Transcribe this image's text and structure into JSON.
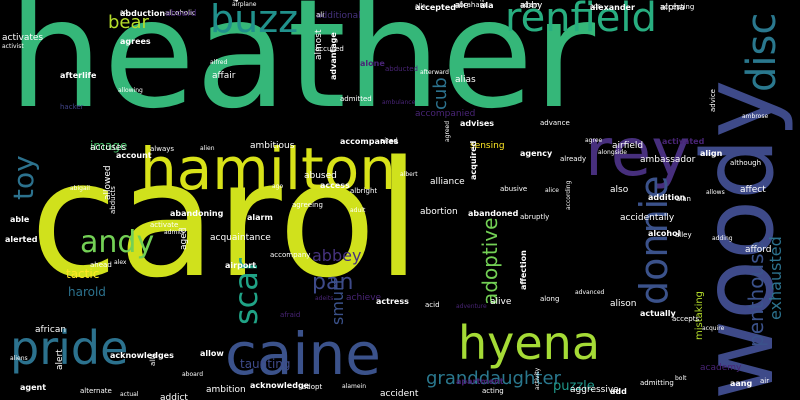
{
  "words": [
    {
      "text": "heather",
      "color": "#35b779"
    },
    {
      "text": "carol",
      "color": "#d0e11c"
    },
    {
      "text": "woody",
      "color": "#3e4a89"
    },
    {
      "text": "caine",
      "color": "#3b528b"
    },
    {
      "text": "hamilton",
      "color": "#d8e219"
    },
    {
      "text": "pride",
      "color": "#2c728e"
    },
    {
      "text": "rey",
      "color": "#472f7d"
    },
    {
      "text": "renfield",
      "color": "#28ae80"
    },
    {
      "text": "disc",
      "color": "#2a788e"
    },
    {
      "text": "donnie",
      "color": "#3b528b"
    },
    {
      "text": "hyena",
      "color": "#a5db36"
    },
    {
      "text": "buzz",
      "color": "#21918c"
    },
    {
      "text": "toy",
      "color": "#2c728e"
    },
    {
      "text": "scar",
      "color": "#20a386"
    },
    {
      "text": "andy",
      "color": "#73d055"
    },
    {
      "text": "penthouse",
      "color": "#3b528b"
    },
    {
      "text": "exhausted",
      "color": "#2c728e"
    },
    {
      "text": "pan",
      "color": "#3e4a89"
    },
    {
      "text": "abbey",
      "color": "#46327e"
    },
    {
      "text": "adoptive",
      "color": "#73d055"
    },
    {
      "text": "granddaughter",
      "color": "#2a788e"
    },
    {
      "text": "bear",
      "color": "#b5de2b"
    },
    {
      "text": "cub",
      "color": "#2c728e"
    },
    {
      "text": "smurf",
      "color": "#3b528b"
    },
    {
      "text": "image",
      "color": "#4ac16d"
    },
    {
      "text": "harold",
      "color": "#2c728e"
    },
    {
      "text": "tactic",
      "color": "#fde725"
    },
    {
      "text": "puzzle",
      "color": "#1f988b"
    },
    {
      "text": "taunting",
      "color": "#3e4a89"
    },
    {
      "text": "mistaking",
      "color": "#b5de2b"
    },
    {
      "text": "abduction",
      "color": "#ffffff"
    },
    {
      "text": "alcoholic",
      "color": "#ffffff"
    },
    {
      "text": "airplane",
      "color": "#ffffff"
    },
    {
      "text": "additional",
      "color": "#46327e"
    },
    {
      "text": "accepted",
      "color": "#ffffff"
    },
    {
      "text": "abraham",
      "color": "#ffffff"
    },
    {
      "text": "actor",
      "color": "#ffffff"
    },
    {
      "text": "abby",
      "color": "#ffffff"
    },
    {
      "text": "alexander",
      "color": "#ffffff"
    },
    {
      "text": "accepting",
      "color": "#ffffff"
    },
    {
      "text": "activist",
      "color": "#ffffff"
    },
    {
      "text": "activates",
      "color": "#ffffff"
    },
    {
      "text": "agrees",
      "color": "#ffffff"
    },
    {
      "text": "accused",
      "color": "#ffffff"
    },
    {
      "text": "alfred",
      "color": "#ffffff"
    },
    {
      "text": "almost",
      "color": "#ffffff"
    },
    {
      "text": "alone",
      "color": "#482475"
    },
    {
      "text": "abducted",
      "color": "#482475"
    },
    {
      "text": "afterward",
      "color": "#ffffff"
    },
    {
      "text": "alias",
      "color": "#ffffff"
    },
    {
      "text": "afterlife",
      "color": "#ffffff"
    },
    {
      "text": "hacker",
      "color": "#414487"
    },
    {
      "text": "allowing",
      "color": "#ffffff"
    },
    {
      "text": "affair",
      "color": "#ffffff"
    },
    {
      "text": "advantage",
      "color": "#ffffff"
    },
    {
      "text": "admitted",
      "color": "#ffffff"
    },
    {
      "text": "ambulance",
      "color": "#482475"
    },
    {
      "text": "accompanied",
      "color": "#482475"
    },
    {
      "text": "advises",
      "color": "#ffffff"
    },
    {
      "text": "advance",
      "color": "#ffffff"
    },
    {
      "text": "agree",
      "color": "#ffffff"
    },
    {
      "text": "airfield",
      "color": "#ffffff"
    },
    {
      "text": "activated",
      "color": "#482475"
    },
    {
      "text": "advice",
      "color": "#ffffff"
    },
    {
      "text": "ambrose",
      "color": "#ffffff"
    },
    {
      "text": "accuses",
      "color": "#ffffff"
    },
    {
      "text": "account",
      "color": "#ffffff"
    },
    {
      "text": "always",
      "color": "#ffffff"
    },
    {
      "text": "alien",
      "color": "#ffffff"
    },
    {
      "text": "ambitious",
      "color": "#ffffff"
    },
    {
      "text": "accompanies",
      "color": "#ffffff"
    },
    {
      "text": "aired",
      "color": "#ffffff"
    },
    {
      "text": "agreed",
      "color": "#ffffff"
    },
    {
      "text": "sensing",
      "color": "#fde725"
    },
    {
      "text": "agency",
      "color": "#ffffff"
    },
    {
      "text": "already",
      "color": "#ffffff"
    },
    {
      "text": "alongside",
      "color": "#ffffff"
    },
    {
      "text": "ambassador",
      "color": "#ffffff"
    },
    {
      "text": "align",
      "color": "#ffffff"
    },
    {
      "text": "although",
      "color": "#ffffff"
    },
    {
      "text": "abigail",
      "color": "#ffffff"
    },
    {
      "text": "allowed",
      "color": "#ffffff"
    },
    {
      "text": "abandoning",
      "color": "#ffffff"
    },
    {
      "text": "activate",
      "color": "#ffffff"
    },
    {
      "text": "ago",
      "color": "#ffffff"
    },
    {
      "text": "abused",
      "color": "#ffffff"
    },
    {
      "text": "access",
      "color": "#ffffff"
    },
    {
      "text": "albright",
      "color": "#ffffff"
    },
    {
      "text": "albert",
      "color": "#ffffff"
    },
    {
      "text": "alliance",
      "color": "#ffffff"
    },
    {
      "text": "acquired",
      "color": "#ffffff"
    },
    {
      "text": "abusive",
      "color": "#ffffff"
    },
    {
      "text": "alice",
      "color": "#ffffff"
    },
    {
      "text": "also",
      "color": "#ffffff"
    },
    {
      "text": "addition",
      "color": "#ffffff"
    },
    {
      "text": "alan",
      "color": "#ffffff"
    },
    {
      "text": "allows",
      "color": "#ffffff"
    },
    {
      "text": "affect",
      "color": "#ffffff"
    },
    {
      "text": "able",
      "color": "#ffffff"
    },
    {
      "text": "abducts",
      "color": "#ffffff"
    },
    {
      "text": "admits",
      "color": "#ffffff"
    },
    {
      "text": "acquaintance",
      "color": "#ffffff"
    },
    {
      "text": "alarm",
      "color": "#ffffff"
    },
    {
      "text": "agreeing",
      "color": "#ffffff"
    },
    {
      "text": "adult",
      "color": "#ffffff"
    },
    {
      "text": "abortion",
      "color": "#ffffff"
    },
    {
      "text": "abandoned",
      "color": "#ffffff"
    },
    {
      "text": "abruptly",
      "color": "#ffffff"
    },
    {
      "text": "according",
      "color": "#ffffff"
    },
    {
      "text": "accidentally",
      "color": "#ffffff"
    },
    {
      "text": "alcohol",
      "color": "#ffffff"
    },
    {
      "text": "alley",
      "color": "#ffffff"
    },
    {
      "text": "adding",
      "color": "#ffffff"
    },
    {
      "text": "afford",
      "color": "#ffffff"
    },
    {
      "text": "alerted",
      "color": "#ffffff"
    },
    {
      "text": "ahead",
      "color": "#ffffff"
    },
    {
      "text": "alex",
      "color": "#ffffff"
    },
    {
      "text": "aged",
      "color": "#ffffff"
    },
    {
      "text": "airport",
      "color": "#ffffff"
    },
    {
      "text": "accompany",
      "color": "#ffffff"
    },
    {
      "text": "adeits",
      "color": "#482475"
    },
    {
      "text": "achieve",
      "color": "#482475"
    },
    {
      "text": "actress",
      "color": "#ffffff"
    },
    {
      "text": "acid",
      "color": "#ffffff"
    },
    {
      "text": "adventure",
      "color": "#482475"
    },
    {
      "text": "alive",
      "color": "#ffffff"
    },
    {
      "text": "affection",
      "color": "#ffffff"
    },
    {
      "text": "along",
      "color": "#ffffff"
    },
    {
      "text": "advanced",
      "color": "#ffffff"
    },
    {
      "text": "alison",
      "color": "#ffffff"
    },
    {
      "text": "actually",
      "color": "#ffffff"
    },
    {
      "text": "accepts",
      "color": "#ffffff"
    },
    {
      "text": "acquire",
      "color": "#ffffff"
    },
    {
      "text": "african",
      "color": "#ffffff"
    },
    {
      "text": "acknowledges",
      "color": "#ffffff"
    },
    {
      "text": "ally",
      "color": "#ffffff"
    },
    {
      "text": "aboard",
      "color": "#ffffff"
    },
    {
      "text": "ambition",
      "color": "#ffffff"
    },
    {
      "text": "acknowledge",
      "color": "#ffffff"
    },
    {
      "text": "adopt",
      "color": "#ffffff"
    },
    {
      "text": "alamein",
      "color": "#ffffff"
    },
    {
      "text": "accident",
      "color": "#ffffff"
    },
    {
      "text": "apartment",
      "color": "#482475"
    },
    {
      "text": "acting",
      "color": "#ffffff"
    },
    {
      "text": "activity",
      "color": "#ffffff"
    },
    {
      "text": "aggressive",
      "color": "#ffffff"
    },
    {
      "text": "add",
      "color": "#ffffff"
    },
    {
      "text": "admitting",
      "color": "#ffffff"
    },
    {
      "text": "bolt",
      "color": "#ffffff"
    },
    {
      "text": "academy",
      "color": "#482475"
    },
    {
      "text": "aang",
      "color": "#ffffff"
    },
    {
      "text": "air",
      "color": "#ffffff"
    },
    {
      "text": "aliens",
      "color": "#ffffff"
    },
    {
      "text": "alert",
      "color": "#ffffff"
    },
    {
      "text": "agent",
      "color": "#ffffff"
    },
    {
      "text": "alternate",
      "color": "#ffffff"
    },
    {
      "text": "actual",
      "color": "#ffffff"
    },
    {
      "text": "addict",
      "color": "#ffffff"
    },
    {
      "text": "allow",
      "color": "#ffffff"
    },
    {
      "text": "afraid",
      "color": "#482475"
    },
    {
      "text": "ad",
      "color": "#ffffff"
    },
    {
      "text": "aboard",
      "color": "#482475"
    },
    {
      "text": "ace",
      "color": "#ffffff"
    },
    {
      "text": "ali",
      "color": "#ffffff"
    },
    {
      "text": "alle",
      "color": "#ffffff"
    },
    {
      "text": "ale",
      "color": "#ffffff"
    },
    {
      "text": "ala",
      "color": "#ffffff"
    },
    {
      "text": "adam",
      "color": "#ffffff"
    },
    {
      "text": "ads",
      "color": "#ffffff"
    },
    {
      "text": "alpha",
      "color": "#ffffff"
    }
  ]
}
